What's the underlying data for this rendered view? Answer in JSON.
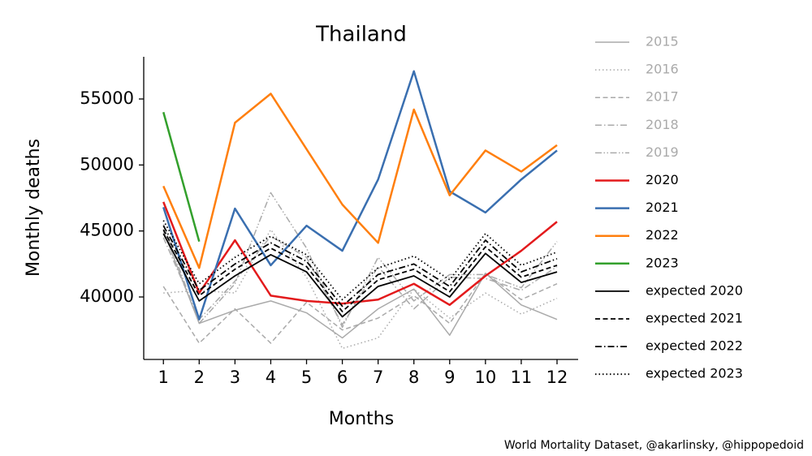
{
  "chart_data": {
    "type": "line",
    "title": "Thailand",
    "xlabel": "Months",
    "ylabel": "Monthly deaths",
    "note": "World Mortality Dataset, @akarlinsky, @hippopedoid",
    "x": [
      1,
      2,
      3,
      4,
      5,
      6,
      7,
      8,
      9,
      10,
      11,
      12
    ],
    "xlim": [
      0.45,
      12.59
    ],
    "xticks": [
      1,
      2,
      3,
      4,
      5,
      6,
      7,
      8,
      9,
      10,
      11,
      12
    ],
    "ylim": [
      35267,
      58196
    ],
    "yticks": [
      40000,
      45000,
      50000,
      55000
    ],
    "legend": "outside right",
    "series": [
      {
        "name": "2015",
        "color": "#aaaaaa",
        "label_color": "#aaaaaa",
        "dash": "solid",
        "width": 1.5,
        "values": [
          45000,
          38000,
          39000,
          39700,
          38800,
          36900,
          39100,
          40600,
          37100,
          41800,
          39400,
          38300
        ]
      },
      {
        "name": "2016",
        "color": "#aaaaaa",
        "label_color": "#aaaaaa",
        "dash": "dotted",
        "width": 1.5,
        "values": [
          40300,
          40500,
          40300,
          45100,
          41500,
          36100,
          36900,
          40600,
          38400,
          40300,
          38700,
          39900
        ]
      },
      {
        "name": "2017",
        "color": "#aaaaaa",
        "label_color": "#aaaaaa",
        "dash": "dashed",
        "width": 1.5,
        "values": [
          40800,
          36500,
          39100,
          36500,
          39600,
          37500,
          38400,
          40100,
          38000,
          41800,
          39800,
          41000
        ]
      },
      {
        "name": "2018",
        "color": "#aaaaaa",
        "label_color": "#aaaaaa",
        "dash": "dashdot",
        "width": 1.5,
        "values": [
          44500,
          38300,
          41200,
          44600,
          43000,
          37900,
          42300,
          39100,
          41500,
          41400,
          40500,
          42300
        ]
      },
      {
        "name": "2019",
        "color": "#aaaaaa",
        "label_color": "#aaaaaa",
        "dash": "dashdotdot",
        "width": 1.5,
        "values": [
          45500,
          38000,
          41000,
          47900,
          43700,
          37700,
          43000,
          39700,
          41700,
          41700,
          40700,
          44200
        ]
      },
      {
        "name": "2020",
        "color": "#e31a1c",
        "label_color": "#000000",
        "dash": "solid",
        "width": 2.5,
        "values": [
          47200,
          40300,
          44300,
          40100,
          39700,
          39500,
          39800,
          41000,
          39400,
          41600,
          43500,
          45700
        ]
      },
      {
        "name": "2021",
        "color": "#3a6fb0",
        "label_color": "#000000",
        "dash": "solid",
        "width": 2.5,
        "values": [
          46800,
          38300,
          46700,
          42400,
          45400,
          43500,
          48900,
          57100,
          48000,
          46400,
          48900,
          51100
        ]
      },
      {
        "name": "2022",
        "color": "#ff7f0e",
        "label_color": "#000000",
        "dash": "solid",
        "width": 2.5,
        "values": [
          48400,
          42200,
          53200,
          55400,
          51200,
          47000,
          44100,
          54200,
          47700,
          51100,
          49500,
          51500
        ]
      },
      {
        "name": "2023",
        "color": "#33a02c",
        "label_color": "#000000",
        "dash": "solid",
        "width": 2.5,
        "values": [
          54000,
          44200,
          null,
          null,
          null,
          null,
          null,
          null,
          null,
          null,
          null,
          null
        ]
      },
      {
        "name": "expected 2020",
        "color": "#000000",
        "label_color": "#000000",
        "dash": "solid",
        "width": 1.8,
        "values": [
          44800,
          39700,
          41600,
          43200,
          41900,
          38500,
          40800,
          41600,
          40000,
          43300,
          41100,
          41900
        ]
      },
      {
        "name": "expected 2021",
        "color": "#000000",
        "label_color": "#000000",
        "dash": "dashed",
        "width": 1.8,
        "values": [
          45100,
          40100,
          42100,
          43700,
          42300,
          38900,
          41300,
          42100,
          40400,
          43800,
          41500,
          42400
        ]
      },
      {
        "name": "expected 2022",
        "color": "#000000",
        "label_color": "#000000",
        "dash": "dashdot",
        "width": 1.8,
        "values": [
          45400,
          40500,
          42500,
          44100,
          42700,
          39300,
          41700,
          42500,
          40800,
          44300,
          41900,
          42900
        ]
      },
      {
        "name": "expected 2023",
        "color": "#000000",
        "label_color": "#000000",
        "dash": "dotted",
        "width": 1.8,
        "values": [
          45800,
          41000,
          43000,
          44600,
          43200,
          39800,
          42200,
          43100,
          41300,
          44800,
          42400,
          43400
        ]
      }
    ]
  }
}
